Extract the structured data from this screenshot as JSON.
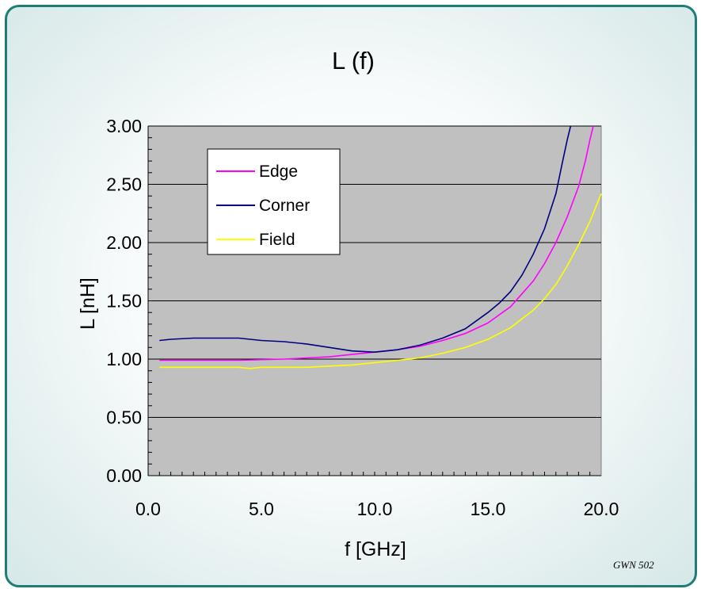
{
  "chart_data": {
    "type": "line",
    "title": "L (f)",
    "xlabel": "f [GHz]",
    "ylabel": "L [nH]",
    "xlim": [
      0,
      20
    ],
    "ylim": [
      0,
      3
    ],
    "x_ticks": [
      "0.0",
      "5.0",
      "10.0",
      "15.0",
      "20.0"
    ],
    "y_ticks": [
      "0.00",
      "0.50",
      "1.00",
      "1.50",
      "2.00",
      "2.50",
      "3.00"
    ],
    "grid": "horizontal",
    "legend_position": "top-left",
    "plot_background": "#c0c0c0",
    "series": [
      {
        "name": "Edge",
        "color": "#ff00ff",
        "points": [
          [
            0.5,
            0.99
          ],
          [
            2,
            0.99
          ],
          [
            4,
            0.99
          ],
          [
            6,
            1.0
          ],
          [
            7,
            1.01
          ],
          [
            8,
            1.02
          ],
          [
            9,
            1.04
          ],
          [
            10,
            1.06
          ],
          [
            11,
            1.08
          ],
          [
            12,
            1.11
          ],
          [
            13,
            1.16
          ],
          [
            14,
            1.22
          ],
          [
            15,
            1.31
          ],
          [
            15.5,
            1.38
          ],
          [
            16,
            1.45
          ],
          [
            16.5,
            1.56
          ],
          [
            17,
            1.67
          ],
          [
            17.5,
            1.82
          ],
          [
            18,
            2.0
          ],
          [
            18.5,
            2.22
          ],
          [
            19,
            2.48
          ],
          [
            19.3,
            2.7
          ],
          [
            19.5,
            2.88
          ],
          [
            19.65,
            3.0
          ]
        ]
      },
      {
        "name": "Corner",
        "color": "#000080",
        "points": [
          [
            0.5,
            1.16
          ],
          [
            1,
            1.17
          ],
          [
            2,
            1.18
          ],
          [
            4,
            1.18
          ],
          [
            5,
            1.16
          ],
          [
            6,
            1.15
          ],
          [
            7,
            1.13
          ],
          [
            8,
            1.1
          ],
          [
            9,
            1.07
          ],
          [
            10,
            1.06
          ],
          [
            11,
            1.08
          ],
          [
            12,
            1.12
          ],
          [
            13,
            1.18
          ],
          [
            14,
            1.26
          ],
          [
            15,
            1.4
          ],
          [
            15.5,
            1.48
          ],
          [
            16,
            1.58
          ],
          [
            16.5,
            1.72
          ],
          [
            17,
            1.9
          ],
          [
            17.5,
            2.12
          ],
          [
            18,
            2.42
          ],
          [
            18.3,
            2.7
          ],
          [
            18.5,
            2.88
          ],
          [
            18.65,
            3.0
          ]
        ]
      },
      {
        "name": "Field",
        "color": "#ffff00",
        "points": [
          [
            0.5,
            0.93
          ],
          [
            2,
            0.93
          ],
          [
            4,
            0.93
          ],
          [
            4.5,
            0.92
          ],
          [
            5,
            0.93
          ],
          [
            6,
            0.93
          ],
          [
            7,
            0.93
          ],
          [
            8,
            0.94
          ],
          [
            9,
            0.95
          ],
          [
            10,
            0.97
          ],
          [
            11,
            0.99
          ],
          [
            12,
            1.01
          ],
          [
            13,
            1.05
          ],
          [
            14,
            1.1
          ],
          [
            15,
            1.17
          ],
          [
            16,
            1.27
          ],
          [
            17,
            1.42
          ],
          [
            17.5,
            1.52
          ],
          [
            18,
            1.64
          ],
          [
            18.5,
            1.8
          ],
          [
            19,
            1.98
          ],
          [
            19.5,
            2.18
          ],
          [
            20,
            2.42
          ]
        ]
      }
    ],
    "watermark": "GWN 502"
  }
}
